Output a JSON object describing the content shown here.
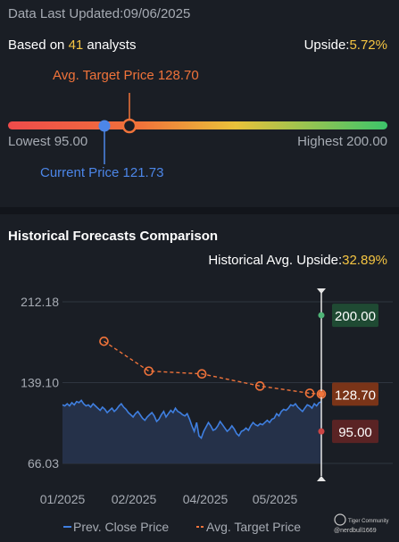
{
  "header": {
    "updated_label": "Data Last Updated:",
    "updated_date": "09/06/2025",
    "based_on_prefix": "Based on ",
    "analyst_count": "41",
    "based_on_suffix": " analysts",
    "upside_label": "Upside:",
    "upside_value": "5.72%"
  },
  "range": {
    "target_label": "Avg. Target Price 128.70",
    "lowest_label": "Lowest 95.00",
    "highest_label": "Highest 200.00",
    "current_label": "Current Price 121.73",
    "lowest": 95.0,
    "highest": 200.0,
    "current": 121.73,
    "target": 128.7
  },
  "history": {
    "title": "Historical Forecasts Comparison",
    "upside_label": "Historical Avg. Upside:",
    "upside_value": "32.89%"
  },
  "chart_data": {
    "type": "line",
    "y_ticks": [
      "212.18",
      "139.10",
      "66.03"
    ],
    "ylim": [
      66.03,
      212.18
    ],
    "x_ticks": [
      "01/2025",
      "02/2025",
      "04/2025",
      "05/2025"
    ],
    "x_tick_positions": [
      0.0,
      0.0,
      0.0,
      0.0
    ],
    "series": [
      {
        "name": "Prev. Close Price",
        "color": "#3f7fe0",
        "values": [
          119,
          118,
          120,
          118,
          121,
          119,
          122,
          121,
          123,
          120,
          118,
          119,
          117,
          120,
          118,
          116,
          114,
          117,
          115,
          112,
          114,
          116,
          113,
          115,
          118,
          120,
          117,
          115,
          112,
          110,
          108,
          111,
          113,
          110,
          107,
          105,
          108,
          110,
          112,
          109,
          104,
          106,
          110,
          113,
          108,
          111,
          114,
          112,
          116,
          113,
          112,
          110,
          109,
          111,
          106,
          100,
          95,
          103,
          91,
          89,
          95,
          99,
          103,
          100,
          96,
          97,
          100,
          104,
          101,
          98,
          95,
          97,
          100,
          97,
          93,
          91,
          95,
          96,
          98,
          96,
          100,
          103,
          101,
          100,
          102,
          101,
          103,
          105,
          103,
          106,
          107,
          111,
          109,
          113,
          115,
          114,
          116,
          119,
          118,
          120,
          117,
          115,
          113,
          116,
          119,
          118,
          116,
          120,
          118,
          121,
          121.73
        ]
      },
      {
        "name": "Avg. Target Price",
        "color": "#f0733a",
        "points": [
          [
            0.25,
            176.5
          ],
          [
            0.52,
            149.5
          ],
          [
            0.84,
            147
          ],
          [
            1.19,
            136
          ],
          [
            1.49,
            129.5
          ],
          [
            1.56,
            128.7
          ]
        ]
      }
    ],
    "end_labels": {
      "highest": "200.00",
      "target": "128.70",
      "lowest": "95.00"
    },
    "legend": [
      "Prev. Close Price",
      "Avg. Target Price"
    ],
    "watermark_brand": "Tiger Community",
    "watermark_user": "@nerdbull1669"
  }
}
